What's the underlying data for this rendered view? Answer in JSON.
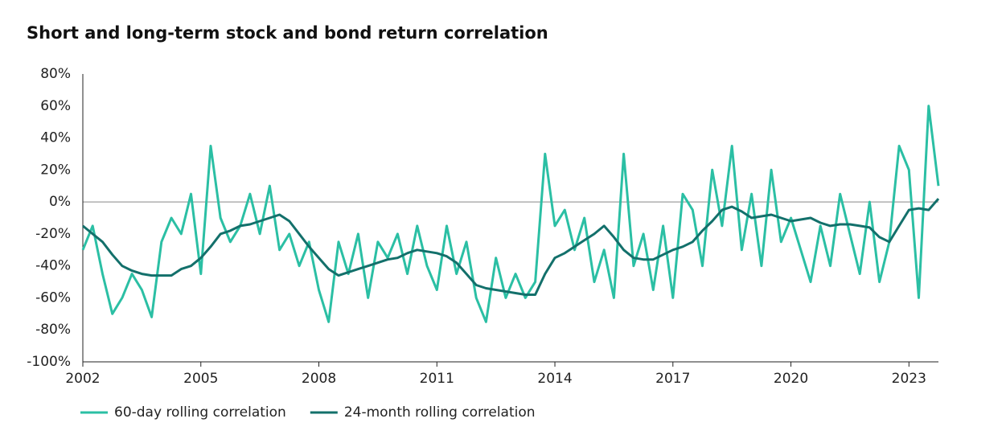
{
  "chart_data": {
    "type": "line",
    "title": "Short and long-term stock and bond return correlation",
    "x": [
      2002,
      2002.25,
      2002.5,
      2002.75,
      2003,
      2003.25,
      2003.5,
      2003.75,
      2004,
      2004.25,
      2004.5,
      2004.75,
      2005,
      2005.25,
      2005.5,
      2005.75,
      2006,
      2006.25,
      2006.5,
      2006.75,
      2007,
      2007.25,
      2007.5,
      2007.75,
      2008,
      2008.25,
      2008.5,
      2008.75,
      2009,
      2009.25,
      2009.5,
      2009.75,
      2010,
      2010.25,
      2010.5,
      2010.75,
      2011,
      2011.25,
      2011.5,
      2011.75,
      2012,
      2012.25,
      2012.5,
      2012.75,
      2013,
      2013.25,
      2013.5,
      2013.75,
      2014,
      2014.25,
      2014.5,
      2014.75,
      2015,
      2015.25,
      2015.5,
      2015.75,
      2016,
      2016.25,
      2016.5,
      2016.75,
      2017,
      2017.25,
      2017.5,
      2017.75,
      2018,
      2018.25,
      2018.5,
      2018.75,
      2019,
      2019.25,
      2019.5,
      2019.75,
      2020,
      2020.25,
      2020.5,
      2020.75,
      2021,
      2021.25,
      2021.5,
      2021.75,
      2022,
      2022.25,
      2022.5,
      2022.75,
      2023,
      2023.25,
      2023.5,
      2023.75
    ],
    "series": [
      {
        "name": "60-day rolling correlation",
        "color": "#2bbfa4",
        "values": [
          -30,
          -15,
          -45,
          -70,
          -60,
          -45,
          -55,
          -72,
          -25,
          -10,
          -20,
          5,
          -45,
          35,
          -10,
          -25,
          -15,
          5,
          -20,
          10,
          -30,
          -20,
          -40,
          -25,
          -55,
          -75,
          -25,
          -45,
          -20,
          -60,
          -25,
          -35,
          -20,
          -45,
          -15,
          -40,
          -55,
          -15,
          -45,
          -25,
          -60,
          -75,
          -35,
          -60,
          -45,
          -60,
          -50,
          30,
          -15,
          -5,
          -30,
          -10,
          -50,
          -30,
          -60,
          30,
          -40,
          -20,
          -55,
          -15,
          -60,
          5,
          -5,
          -40,
          20,
          -15,
          35,
          -30,
          5,
          -40,
          20,
          -25,
          -10,
          -30,
          -50,
          -15,
          -40,
          5,
          -20,
          -45,
          0,
          -50,
          -25,
          35,
          20,
          -60,
          60,
          10
        ]
      },
      {
        "name": "24-month rolling correlation",
        "color": "#13706b",
        "values": [
          -15,
          -20,
          -25,
          -33,
          -40,
          -43,
          -45,
          -46,
          -46,
          -46,
          -42,
          -40,
          -35,
          -28,
          -20,
          -18,
          -15,
          -14,
          -12,
          -10,
          -8,
          -12,
          -20,
          -28,
          -35,
          -42,
          -46,
          -44,
          -42,
          -40,
          -38,
          -36,
          -35,
          -32,
          -30,
          -31,
          -32,
          -34,
          -38,
          -45,
          -52,
          -54,
          -55,
          -56,
          -57,
          -58,
          -58,
          -45,
          -35,
          -32,
          -28,
          -24,
          -20,
          -15,
          -22,
          -30,
          -35,
          -36,
          -36,
          -33,
          -30,
          -28,
          -25,
          -18,
          -12,
          -5,
          -3,
          -6,
          -10,
          -9,
          -8,
          -10,
          -12,
          -11,
          -10,
          -13,
          -15,
          -14,
          -14,
          -15,
          -16,
          -22,
          -25,
          -15,
          -5,
          -4,
          -5,
          2
        ]
      }
    ],
    "xlim": [
      2002,
      2023.75
    ],
    "xticks": [
      2002,
      2005,
      2008,
      2011,
      2014,
      2017,
      2020,
      2023
    ],
    "ylim": [
      -100,
      80
    ],
    "yticks": [
      {
        "value": -100,
        "label": "-100%"
      },
      {
        "value": -80,
        "label": "-80%"
      },
      {
        "value": -60,
        "label": "-60%"
      },
      {
        "value": -40,
        "label": "-40%"
      },
      {
        "value": -20,
        "label": "-20%"
      },
      {
        "value": 0,
        "label": "0%"
      },
      {
        "value": 20,
        "label": "20%"
      },
      {
        "value": 40,
        "label": "40%"
      },
      {
        "value": 60,
        "label": "60%"
      },
      {
        "value": 80,
        "label": "80%"
      }
    ],
    "legend": "bottom-left"
  }
}
